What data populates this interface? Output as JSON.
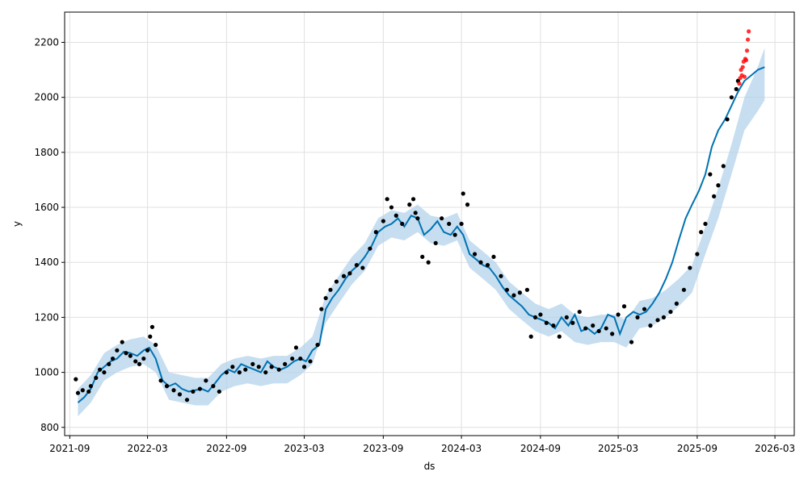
{
  "chart_data": {
    "type": "line",
    "title": "",
    "xlabel": "ds",
    "ylabel": "y",
    "grid": true,
    "xlim": [
      "2021-08-20",
      "2026-04-15"
    ],
    "ylim": [
      770,
      2310
    ],
    "x_ticks": [
      "2021-09",
      "2022-03",
      "2022-09",
      "2023-03",
      "2023-09",
      "2024-03",
      "2024-09",
      "2025-03",
      "2025-09",
      "2026-03"
    ],
    "y_ticks": [
      800,
      1000,
      1200,
      1400,
      1600,
      1800,
      2000,
      2200
    ],
    "colors": {
      "observed": "#000000",
      "forecast": "#0072B2",
      "interval": "#b3d3eb",
      "test_points": "#ff0000",
      "grid": "#e0e0e0"
    },
    "series": [
      {
        "role": "forecast",
        "x": [
          "2021-09-20",
          "2021-10-05",
          "2021-10-20",
          "2021-11-05",
          "2021-11-20",
          "2021-12-05",
          "2021-12-20",
          "2022-01-05",
          "2022-01-20",
          "2022-02-05",
          "2022-02-20",
          "2022-03-05",
          "2022-03-20",
          "2022-04-05",
          "2022-04-20",
          "2022-05-05",
          "2022-05-20",
          "2022-06-05",
          "2022-06-20",
          "2022-07-05",
          "2022-07-20",
          "2022-08-05",
          "2022-08-20",
          "2022-09-05",
          "2022-09-20",
          "2022-10-05",
          "2022-10-20",
          "2022-11-05",
          "2022-11-20",
          "2022-12-05",
          "2022-12-20",
          "2023-01-05",
          "2023-01-20",
          "2023-02-05",
          "2023-02-20",
          "2023-03-05",
          "2023-03-20",
          "2023-04-05",
          "2023-04-20",
          "2023-05-05",
          "2023-05-20",
          "2023-06-05",
          "2023-06-20",
          "2023-07-05",
          "2023-07-20",
          "2023-08-05",
          "2023-08-20",
          "2023-09-05",
          "2023-09-20",
          "2023-10-05",
          "2023-10-20",
          "2023-11-05",
          "2023-11-20",
          "2023-12-05",
          "2023-12-20",
          "2024-01-05",
          "2024-01-20",
          "2024-02-05",
          "2024-02-20",
          "2024-03-05",
          "2024-03-20",
          "2024-04-05",
          "2024-04-20",
          "2024-05-05",
          "2024-05-20",
          "2024-06-05",
          "2024-06-20",
          "2024-07-05",
          "2024-07-20",
          "2024-08-05",
          "2024-08-20",
          "2024-09-05",
          "2024-09-20",
          "2024-10-05",
          "2024-10-20",
          "2024-11-05",
          "2024-11-20",
          "2024-12-05",
          "2024-12-20",
          "2025-01-05",
          "2025-01-20",
          "2025-02-05",
          "2025-02-20",
          "2025-03-05",
          "2025-03-20",
          "2025-04-05",
          "2025-04-20",
          "2025-05-05",
          "2025-05-20",
          "2025-06-05",
          "2025-06-20",
          "2025-07-05",
          "2025-07-20",
          "2025-08-05",
          "2025-08-20",
          "2025-09-05",
          "2025-09-20",
          "2025-10-05",
          "2025-10-20",
          "2025-11-05",
          "2025-11-20",
          "2025-12-05",
          "2025-12-20",
          "2026-01-05",
          "2026-01-20",
          "2026-02-05"
        ],
        "y": [
          890,
          910,
          940,
          1000,
          1020,
          1040,
          1050,
          1075,
          1070,
          1060,
          1080,
          1090,
          1050,
          970,
          950,
          960,
          940,
          930,
          935,
          940,
          930,
          960,
          990,
          1010,
          1000,
          1030,
          1020,
          1010,
          1000,
          1040,
          1020,
          1010,
          1020,
          1040,
          1050,
          1040,
          1080,
          1100,
          1230,
          1270,
          1300,
          1340,
          1370,
          1390,
          1420,
          1460,
          1510,
          1530,
          1540,
          1560,
          1530,
          1570,
          1560,
          1500,
          1520,
          1550,
          1510,
          1500,
          1530,
          1500,
          1430,
          1410,
          1390,
          1380,
          1350,
          1310,
          1280,
          1260,
          1240,
          1210,
          1200,
          1190,
          1180,
          1160,
          1200,
          1170,
          1210,
          1150,
          1160,
          1140,
          1160,
          1210,
          1200,
          1140,
          1200,
          1220,
          1210,
          1220,
          1250,
          1290,
          1340,
          1400,
          1480,
          1560,
          1610,
          1660,
          1720,
          1820,
          1880,
          1920,
          1970,
          2020,
          2060,
          2080,
          2100,
          2110
        ]
      },
      {
        "role": "observed",
        "x": [
          "2021-09-15",
          "2021-09-20",
          "2021-10-01",
          "2021-10-15",
          "2021-10-20",
          "2021-11-01",
          "2021-11-10",
          "2021-11-20",
          "2021-12-01",
          "2021-12-10",
          "2021-12-20",
          "2022-01-01",
          "2022-01-10",
          "2022-01-20",
          "2022-02-01",
          "2022-02-10",
          "2022-02-20",
          "2022-03-01",
          "2022-03-07",
          "2022-03-12",
          "2022-03-20",
          "2022-04-01",
          "2022-04-15",
          "2022-05-01",
          "2022-05-15",
          "2022-06-01",
          "2022-06-15",
          "2022-07-01",
          "2022-07-15",
          "2022-08-01",
          "2022-08-15",
          "2022-09-01",
          "2022-09-15",
          "2022-10-01",
          "2022-10-15",
          "2022-11-01",
          "2022-11-15",
          "2022-12-01",
          "2022-12-15",
          "2023-01-01",
          "2023-01-15",
          "2023-02-01",
          "2023-02-10",
          "2023-02-20",
          "2023-03-01",
          "2023-03-15",
          "2023-04-01",
          "2023-04-10",
          "2023-04-20",
          "2023-05-01",
          "2023-05-15",
          "2023-06-01",
          "2023-06-15",
          "2023-07-01",
          "2023-07-15",
          "2023-08-01",
          "2023-08-15",
          "2023-09-01",
          "2023-09-10",
          "2023-09-20",
          "2023-10-01",
          "2023-10-15",
          "2023-11-01",
          "2023-11-10",
          "2023-11-15",
          "2023-11-20",
          "2023-12-01",
          "2023-12-15",
          "2024-01-01",
          "2024-01-15",
          "2024-02-01",
          "2024-02-15",
          "2024-03-01",
          "2024-03-05",
          "2024-03-15",
          "2024-04-01",
          "2024-04-15",
          "2024-05-01",
          "2024-05-15",
          "2024-06-01",
          "2024-06-15",
          "2024-07-01",
          "2024-07-15",
          "2024-08-01",
          "2024-08-10",
          "2024-08-20",
          "2024-09-01",
          "2024-09-15",
          "2024-10-01",
          "2024-10-15",
          "2024-11-01",
          "2024-11-15",
          "2024-12-01",
          "2024-12-15",
          "2025-01-01",
          "2025-01-15",
          "2025-02-01",
          "2025-02-15",
          "2025-03-01",
          "2025-03-15",
          "2025-04-01",
          "2025-04-15",
          "2025-05-01",
          "2025-05-15",
          "2025-06-01",
          "2025-06-15",
          "2025-07-01",
          "2025-07-15",
          "2025-08-01",
          "2025-08-15",
          "2025-09-01",
          "2025-09-10",
          "2025-09-20",
          "2025-10-01",
          "2025-10-10",
          "2025-10-20",
          "2025-11-01",
          "2025-11-10",
          "2025-11-20",
          "2025-12-01",
          "2025-12-05"
        ],
        "y": [
          975,
          925,
          935,
          930,
          950,
          980,
          1010,
          1000,
          1030,
          1050,
          1080,
          1110,
          1070,
          1060,
          1040,
          1030,
          1050,
          1080,
          1130,
          1165,
          1100,
          970,
          950,
          935,
          920,
          900,
          930,
          940,
          970,
          950,
          930,
          1000,
          1020,
          1000,
          1010,
          1030,
          1020,
          1000,
          1020,
          1010,
          1030,
          1050,
          1090,
          1050,
          1020,
          1040,
          1100,
          1230,
          1270,
          1300,
          1330,
          1350,
          1360,
          1390,
          1380,
          1450,
          1510,
          1550,
          1630,
          1600,
          1570,
          1540,
          1610,
          1630,
          1580,
          1560,
          1420,
          1400,
          1470,
          1560,
          1540,
          1500,
          1540,
          1650,
          1610,
          1430,
          1400,
          1390,
          1420,
          1350,
          1300,
          1280,
          1290,
          1300,
          1130,
          1200,
          1210,
          1180,
          1170,
          1130,
          1200,
          1180,
          1220,
          1160,
          1170,
          1150,
          1160,
          1140,
          1210,
          1240,
          1110,
          1200,
          1230,
          1170,
          1190,
          1200,
          1220,
          1250,
          1300,
          1380,
          1430,
          1510,
          1540,
          1720,
          1640,
          1680,
          1750,
          1920,
          2000,
          2030,
          2060
        ]
      },
      {
        "role": "test_points",
        "x": [
          "2025-12-08",
          "2025-12-10",
          "2025-12-12",
          "2025-12-14",
          "2025-12-16",
          "2025-12-18",
          "2025-12-20",
          "2025-12-22",
          "2025-12-24",
          "2025-12-26",
          "2025-12-28",
          "2025-12-30"
        ],
        "y": [
          2050,
          2070,
          2100,
          2080,
          2110,
          2130,
          2075,
          2140,
          2135,
          2170,
          2210,
          2240
        ]
      }
    ],
    "interval_band": {
      "x": [
        "2021-09-20",
        "2021-10-20",
        "2021-11-20",
        "2021-12-20",
        "2022-01-20",
        "2022-02-20",
        "2022-03-20",
        "2022-04-20",
        "2022-05-20",
        "2022-06-20",
        "2022-07-20",
        "2022-08-20",
        "2022-09-20",
        "2022-10-20",
        "2022-11-20",
        "2022-12-20",
        "2023-01-20",
        "2023-02-20",
        "2023-03-20",
        "2023-04-20",
        "2023-05-20",
        "2023-06-20",
        "2023-07-20",
        "2023-08-20",
        "2023-09-20",
        "2023-10-20",
        "2023-11-20",
        "2023-12-20",
        "2024-01-20",
        "2024-02-20",
        "2024-03-20",
        "2024-04-20",
        "2024-05-20",
        "2024-06-20",
        "2024-07-20",
        "2024-08-20",
        "2024-09-20",
        "2024-10-20",
        "2024-11-20",
        "2024-12-20",
        "2025-01-20",
        "2025-02-20",
        "2025-03-20",
        "2025-04-20",
        "2025-05-20",
        "2025-06-20",
        "2025-07-20",
        "2025-08-20",
        "2025-09-20",
        "2025-10-20",
        "2025-11-20",
        "2025-12-20",
        "2026-01-20",
        "2026-02-05"
      ],
      "lower": [
        840,
        890,
        970,
        1000,
        1020,
        1030,
        1000,
        900,
        890,
        880,
        880,
        930,
        950,
        960,
        950,
        960,
        960,
        990,
        1030,
        1180,
        1250,
        1320,
        1370,
        1460,
        1490,
        1480,
        1510,
        1470,
        1460,
        1480,
        1380,
        1340,
        1300,
        1230,
        1190,
        1150,
        1130,
        1150,
        1110,
        1100,
        1110,
        1110,
        1090,
        1160,
        1170,
        1200,
        1240,
        1290,
        1430,
        1560,
        1720,
        1880,
        1950,
        1990
      ],
      "upper": [
        940,
        990,
        1070,
        1100,
        1120,
        1130,
        1100,
        1000,
        990,
        980,
        980,
        1030,
        1050,
        1060,
        1050,
        1060,
        1060,
        1090,
        1130,
        1280,
        1350,
        1420,
        1470,
        1560,
        1590,
        1580,
        1610,
        1570,
        1560,
        1580,
        1480,
        1440,
        1400,
        1330,
        1290,
        1250,
        1230,
        1250,
        1210,
        1200,
        1210,
        1210,
        1190,
        1260,
        1270,
        1300,
        1340,
        1390,
        1530,
        1670,
        1830,
        2000,
        2110,
        2180
      ]
    }
  }
}
